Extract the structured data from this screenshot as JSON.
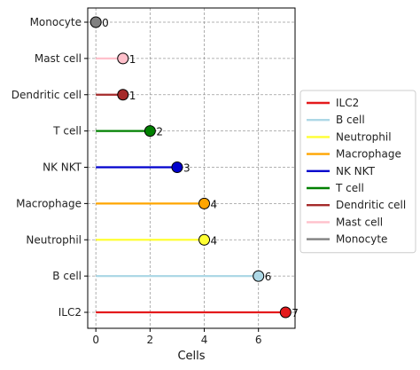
{
  "chart_data": {
    "type": "lollipop",
    "orientation": "horizontal",
    "title": "",
    "xlabel": "Cells",
    "ylabel": "",
    "xlim": [
      -0.3,
      7.35
    ],
    "xticks": [
      0,
      2,
      4,
      6
    ],
    "grid": true,
    "grid_style": "dashed",
    "legend_position": "center-right",
    "categories": [
      "ILC2",
      "B cell",
      "Neutrophil",
      "Macrophage",
      "NK NKT",
      "T cell",
      "Dendritic cell",
      "Mast cell",
      "Monocyte"
    ],
    "values": [
      7,
      6,
      4,
      4,
      3,
      2,
      1,
      1,
      0
    ],
    "colors": [
      "#e41a1c",
      "#add8e6",
      "#ffff33",
      "#ffa500",
      "#0000cd",
      "#008000",
      "#a52a2a",
      "#ffc0cb",
      "#808080"
    ],
    "legend": [
      "ILC2",
      "B cell",
      "Neutrophil",
      "Macrophage",
      "NK NKT",
      "T cell",
      "Dendritic cell",
      "Mast cell",
      "Monocyte"
    ]
  }
}
